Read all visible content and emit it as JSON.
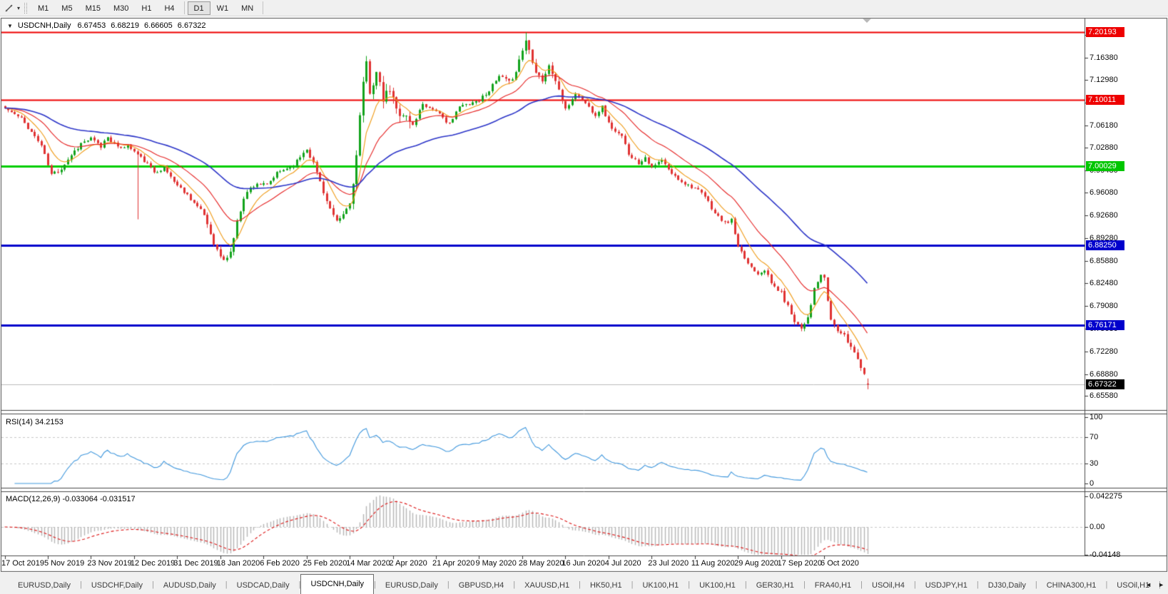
{
  "toolbar": {
    "timeframes": [
      "M1",
      "M5",
      "M15",
      "M30",
      "H1",
      "H4",
      "D1",
      "W1",
      "MN"
    ],
    "active_timeframe": "D1",
    "tool_caret": "▾"
  },
  "chart": {
    "collapse_caret": "▼",
    "symbol": "USDCNH,Daily",
    "open": "6.67453",
    "high": "6.68219",
    "low": "6.66605",
    "close": "6.67322",
    "price_axis_ticks": [
      "7.19780",
      "7.16380",
      "7.12980",
      "7.09580",
      "7.06180",
      "7.02880",
      "6.99480",
      "6.96080",
      "6.92680",
      "6.89280",
      "6.85880",
      "6.82480",
      "6.79080",
      "6.75680",
      "6.72280",
      "6.68880",
      "6.65580"
    ],
    "level_badges": [
      {
        "label": "7.20193",
        "color": "#ee0000"
      },
      {
        "label": "7.10011",
        "color": "#ee0000"
      },
      {
        "label": "7.00029",
        "color": "#00c600"
      },
      {
        "label": "6.88250",
        "color": "#0000cc"
      },
      {
        "label": "6.76171",
        "color": "#0000cc"
      }
    ],
    "current_price_badge": {
      "label": "6.67322",
      "color": "#000000"
    }
  },
  "rsi": {
    "label": "RSI(14) 34.2153",
    "axis_ticks": [
      "100",
      "70",
      "30",
      "0"
    ]
  },
  "macd": {
    "label": "MACD(12,26,9) -0.033064 -0.031517",
    "axis_ticks": [
      "0.042275",
      "0.00",
      "-0.04148"
    ]
  },
  "time_axis": [
    "17 Oct 2019",
    "5 Nov 2019",
    "23 Nov 2019",
    "12 Dec 2019",
    "31 Dec 2019",
    "18 Jan 2020",
    "6 Feb 2020",
    "25 Feb 2020",
    "14 Mar 2020",
    "2 Apr 2020",
    "21 Apr 2020",
    "9 May 2020",
    "28 May 2020",
    "16 Jun 2020",
    "4 Jul 2020",
    "23 Jul 2020",
    "11 Aug 2020",
    "29 Aug 2020",
    "17 Sep 2020",
    "6 Oct 2020"
  ],
  "tabs": {
    "items": [
      "EURUSD,Daily",
      "USDCHF,Daily",
      "AUDUSD,Daily",
      "USDCAD,Daily",
      "USDCNH,Daily",
      "EURUSD,Daily",
      "GBPUSD,H4",
      "XAUUSD,H1",
      "HK50,H1",
      "UK100,H1",
      "UK100,H1",
      "GER30,H1",
      "FRA40,H1",
      "USOil,H4",
      "USDJPY,H1",
      "DJ30,Daily",
      "CHINA300,H1",
      "USOil,H1"
    ],
    "active_index": 4,
    "separator": "|",
    "scroll_left": "◄",
    "scroll_right": "►"
  },
  "chart_data": {
    "type": "candlestick",
    "symbol": "USDCNH",
    "timeframe": "Daily",
    "bars": 261,
    "seed": 11,
    "ylim": [
      6.6338,
      7.2223
    ],
    "x_label_step": 13,
    "levels": [
      {
        "price": 7.20193,
        "color": "#ee0000",
        "width": 2
      },
      {
        "price": 7.10011,
        "color": "#ee0000",
        "width": 2
      },
      {
        "price": 7.00029,
        "color": "#00ce00",
        "width": 3
      },
      {
        "price": 6.8825,
        "color": "#0000cc",
        "width": 3
      },
      {
        "price": 6.76171,
        "color": "#0000cc",
        "width": 3
      }
    ],
    "current_price": 6.67322,
    "current_price_line_color": "#bcbcbc",
    "last_bar": {
      "open": 6.67453,
      "high": 6.68219,
      "low": 6.66605,
      "close": 6.67322
    },
    "up_color": "#12a31c",
    "down_color": "#e03232",
    "base_vol": 0.0042,
    "vol_zones": [
      [
        14,
        22,
        0.0062
      ],
      [
        29,
        33,
        0.0062
      ],
      [
        60,
        72,
        0.0068
      ],
      [
        90,
        104,
        0.0058
      ],
      [
        105,
        122,
        0.0125
      ],
      [
        150,
        168,
        0.0075
      ],
      [
        234,
        248,
        0.006
      ],
      [
        249,
        260,
        0.0062
      ]
    ],
    "spike_lows": [
      [
        40,
        6.921
      ]
    ],
    "spike_highs": [
      [
        157,
        7.2015
      ]
    ],
    "close_anchors": [
      [
        0,
        7.088
      ],
      [
        5,
        7.072
      ],
      [
        11,
        7.032
      ],
      [
        14,
        6.988
      ],
      [
        17,
        6.998
      ],
      [
        20,
        7.018
      ],
      [
        23,
        7.035
      ],
      [
        26,
        7.042
      ],
      [
        29,
        7.03
      ],
      [
        31,
        7.046
      ],
      [
        34,
        7.028
      ],
      [
        37,
        7.032
      ],
      [
        40,
        7.018
      ],
      [
        43,
        7.004
      ],
      [
        45,
        6.992
      ],
      [
        48,
        6.998
      ],
      [
        52,
        6.972
      ],
      [
        55,
        6.958
      ],
      [
        57,
        6.946
      ],
      [
        60,
        6.928
      ],
      [
        62,
        6.9
      ],
      [
        64,
        6.874
      ],
      [
        66,
        6.858
      ],
      [
        68,
        6.872
      ],
      [
        70,
        6.916
      ],
      [
        72,
        6.955
      ],
      [
        74,
        6.968
      ],
      [
        76,
        6.975
      ],
      [
        79,
        6.972
      ],
      [
        82,
        6.99
      ],
      [
        85,
        6.998
      ],
      [
        87,
        7.002
      ],
      [
        89,
        7.015
      ],
      [
        91,
        7.028
      ],
      [
        93,
        7.005
      ],
      [
        95,
        6.978
      ],
      [
        97,
        6.948
      ],
      [
        99,
        6.925
      ],
      [
        100,
        6.916
      ],
      [
        102,
        6.928
      ],
      [
        104,
        6.945
      ],
      [
        106,
        7.015
      ],
      [
        107,
        7.075
      ],
      [
        108,
        7.12
      ],
      [
        109,
        7.155
      ],
      [
        110,
        7.115
      ],
      [
        112,
        7.14
      ],
      [
        114,
        7.1
      ],
      [
        116,
        7.115
      ],
      [
        118,
        7.085
      ],
      [
        120,
        7.08
      ],
      [
        123,
        7.062
      ],
      [
        126,
        7.095
      ],
      [
        128,
        7.088
      ],
      [
        130,
        7.085
      ],
      [
        133,
        7.065
      ],
      [
        135,
        7.072
      ],
      [
        137,
        7.09
      ],
      [
        140,
        7.095
      ],
      [
        143,
        7.1
      ],
      [
        146,
        7.115
      ],
      [
        149,
        7.135
      ],
      [
        152,
        7.125
      ],
      [
        154,
        7.145
      ],
      [
        156,
        7.175
      ],
      [
        157,
        7.19
      ],
      [
        158,
        7.175
      ],
      [
        160,
        7.145
      ],
      [
        162,
        7.13
      ],
      [
        164,
        7.15
      ],
      [
        166,
        7.13
      ],
      [
        168,
        7.1
      ],
      [
        169,
        7.085
      ],
      [
        172,
        7.11
      ],
      [
        175,
        7.095
      ],
      [
        178,
        7.078
      ],
      [
        180,
        7.09
      ],
      [
        182,
        7.065
      ],
      [
        184,
        7.052
      ],
      [
        186,
        7.045
      ],
      [
        188,
        7.02
      ],
      [
        191,
        7.005
      ],
      [
        193,
        7.015
      ],
      [
        195,
        6.998
      ],
      [
        198,
        7.01
      ],
      [
        200,
        6.995
      ],
      [
        202,
        6.985
      ],
      [
        205,
        6.975
      ],
      [
        208,
        6.968
      ],
      [
        211,
        6.955
      ],
      [
        214,
        6.93
      ],
      [
        217,
        6.915
      ],
      [
        219,
        6.92
      ],
      [
        221,
        6.878
      ],
      [
        224,
        6.855
      ],
      [
        227,
        6.84
      ],
      [
        229,
        6.846
      ],
      [
        231,
        6.825
      ],
      [
        234,
        6.81
      ],
      [
        236,
        6.79
      ],
      [
        238,
        6.77
      ],
      [
        240,
        6.758
      ],
      [
        242,
        6.775
      ],
      [
        244,
        6.815
      ],
      [
        246,
        6.838
      ],
      [
        247,
        6.83
      ],
      [
        249,
        6.77
      ],
      [
        251,
        6.755
      ],
      [
        253,
        6.745
      ],
      [
        255,
        6.73
      ],
      [
        257,
        6.714
      ],
      [
        258,
        6.7
      ],
      [
        259,
        6.688
      ],
      [
        260,
        6.67322
      ]
    ],
    "moving_averages": [
      {
        "period": 8,
        "color": "#f09a14"
      },
      {
        "period": 21,
        "color": "#e62222"
      },
      {
        "period": 55,
        "color": "#2b34c8"
      }
    ],
    "rsi": {
      "period": 14,
      "last": 34.2153,
      "levels": [
        70,
        30
      ],
      "ylim": [
        0,
        100
      ],
      "color": "#3f97dd",
      "level_color": "#c8c8c8"
    },
    "macd": {
      "fast": 12,
      "slow": 26,
      "signal": 9,
      "last_macd": -0.033064,
      "last_signal": -0.031517,
      "ylim": [
        -0.04148,
        0.042275
      ],
      "hist_color": "#b6b6b6",
      "signal_color": "#dd1414",
      "zero_color": "#c8c8c8"
    }
  }
}
